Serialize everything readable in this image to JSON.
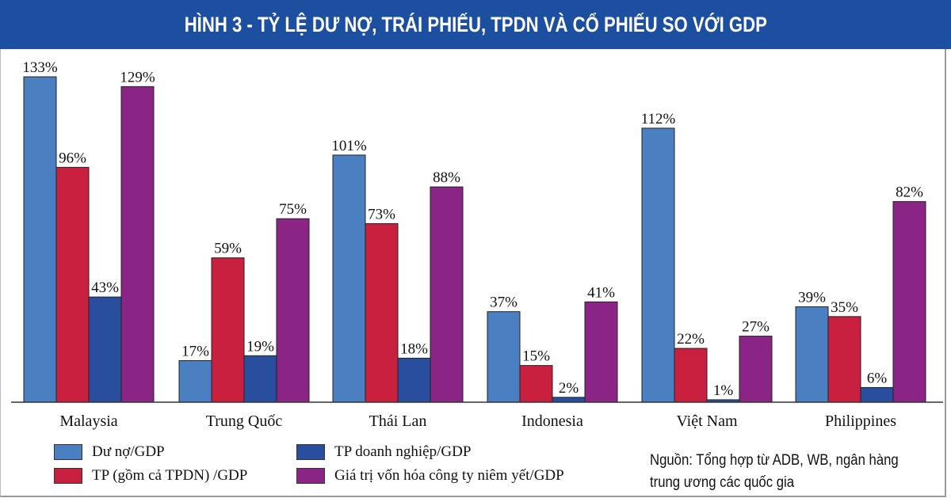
{
  "title": "HÌNH 3 - TỶ LỆ DƯ NỢ, TRÁI PHIẾU, TPDN VÀ CỔ PHIẾU SO VỚI GDP",
  "source_line1": "Nguồn: Tổng hợp từ ADB, WB, ngân hàng",
  "source_line2": "trung ương các quốc gia",
  "colors": {
    "title_bg": "#1c4fa0",
    "s1": "#4a7fc1",
    "s2": "#c8203e",
    "s3": "#2a4e9e",
    "s4": "#8a2585"
  },
  "legend": [
    {
      "label": "Dư nợ/GDP",
      "color": "#4a7fc1"
    },
    {
      "label": "TP (gồm cả TPDN) /GDP",
      "color": "#c8203e"
    },
    {
      "label": "TP doanh nghiệp/GDP",
      "color": "#2a4e9e"
    },
    {
      "label": "Giá trị vốn hóa công ty niêm yết/GDP",
      "color": "#8a2585"
    }
  ],
  "chart_data": {
    "type": "bar",
    "title": "HÌNH 3 - TỶ LỆ DƯ NỢ, TRÁI PHIẾU, TPDN VÀ CỔ PHIẾU SO VỚI GDP",
    "xlabel": "",
    "ylabel": "",
    "ylim": [
      0,
      140
    ],
    "grid": false,
    "legend_position": "bottom-left",
    "categories": [
      "Malaysia",
      "Trung Quốc",
      "Thái Lan",
      "Indonesia",
      "Việt Nam",
      "Philippines"
    ],
    "series": [
      {
        "name": "Dư nợ/GDP",
        "values": [
          133,
          17,
          101,
          37,
          112,
          39
        ],
        "labels": [
          "133%",
          "17%",
          "101%",
          "37%",
          "112%",
          "39%"
        ],
        "color": "#4a7fc1"
      },
      {
        "name": "TP (gồm cả TPDN) /GDP",
        "values": [
          96,
          59,
          73,
          15,
          22,
          35
        ],
        "labels": [
          "96%",
          "59%",
          "73%",
          "15%",
          "22%",
          "35%"
        ],
        "color": "#c8203e"
      },
      {
        "name": "TP doanh nghiệp/GDP",
        "values": [
          43,
          19,
          18,
          2,
          1,
          6
        ],
        "labels": [
          "43%",
          "19%",
          "18%",
          "2%",
          "1%",
          "6%"
        ],
        "color": "#2a4e9e"
      },
      {
        "name": "Giá trị vốn hóa công ty niêm yết/GDP",
        "values": [
          129,
          75,
          88,
          41,
          27,
          82
        ],
        "labels": [
          "129%",
          "75%",
          "88%",
          "41%",
          "27%",
          "82%"
        ],
        "color": "#8a2585"
      }
    ]
  }
}
